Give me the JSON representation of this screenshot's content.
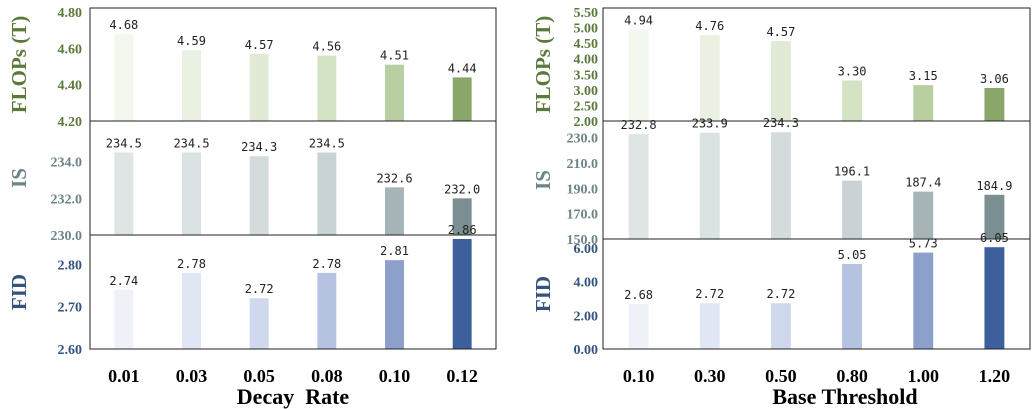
{
  "chart_data": [
    {
      "type": "bar",
      "xlabel": "Decay  Rate",
      "categories": [
        "0.01",
        "0.03",
        "0.05",
        "0.08",
        "0.10",
        "0.12"
      ],
      "panels": [
        {
          "id": "flops",
          "ylabel": "FLOPs (T)",
          "values": [
            4.68,
            4.59,
            4.57,
            4.56,
            4.51,
            4.44
          ],
          "labels": [
            "4.68",
            "4.59",
            "4.57",
            "4.56",
            "4.51",
            "4.44"
          ],
          "ylim": [
            4.2,
            4.8
          ],
          "ticks": [
            "4.20",
            "4.40",
            "4.60",
            "4.80"
          ],
          "tick_values": [
            4.2,
            4.4,
            4.6,
            4.8
          ],
          "label_color": "#5b7a3a",
          "colors": [
            "#f3f8ee",
            "#eaf1e2",
            "#e0ead5",
            "#d3e3c4",
            "#b9cfa2",
            "#8aa66b"
          ]
        },
        {
          "id": "is",
          "ylabel": "IS",
          "values": [
            234.5,
            234.5,
            234.3,
            234.5,
            232.6,
            232.0
          ],
          "labels": [
            "234.5",
            "234.5",
            "234.3",
            "234.5",
            "232.6",
            "232.0"
          ],
          "ylim": [
            230.0,
            236.0
          ],
          "ticks": [
            "230.0",
            "232.0",
            "234.0"
          ],
          "tick_values": [
            230.0,
            232.0,
            234.0
          ],
          "label_color": "#6b8488",
          "colors": [
            "#dfe4e5",
            "#dbe2e3",
            "#d3dbdc",
            "#c9d3d5",
            "#a6b4b7",
            "#7b8f93"
          ]
        },
        {
          "id": "fid",
          "ylabel": "FID",
          "values": [
            2.74,
            2.78,
            2.72,
            2.78,
            2.81,
            2.86
          ],
          "labels": [
            "2.74",
            "2.78",
            "2.72",
            "2.78",
            "2.81",
            "2.86"
          ],
          "ylim": [
            2.6,
            2.86
          ],
          "ticks": [
            "2.60",
            "2.70",
            "2.80"
          ],
          "tick_values": [
            2.6,
            2.7,
            2.8
          ],
          "label_color": "#34547e",
          "colors": [
            "#eef1f8",
            "#e0e6f3",
            "#cfd8ec",
            "#b6c3e0",
            "#8d9fcb",
            "#3d5f9b"
          ]
        }
      ]
    },
    {
      "type": "bar",
      "xlabel": "Base Threshold",
      "categories": [
        "0.10",
        "0.30",
        "0.50",
        "0.80",
        "1.00",
        "1.20"
      ],
      "panels": [
        {
          "id": "flops",
          "ylabel": "FLOPs (T)",
          "values": [
            4.94,
            4.76,
            4.57,
            3.3,
            3.15,
            3.06
          ],
          "labels": [
            "4.94",
            "4.76",
            "4.57",
            "3.30",
            "3.15",
            "3.06"
          ],
          "ylim": [
            2.0,
            5.5
          ],
          "ticks": [
            "2.00",
            "2.50",
            "3.00",
            "3.50",
            "4.00",
            "4.50",
            "5.00",
            "5.50"
          ],
          "tick_values": [
            2.0,
            2.5,
            3.0,
            3.5,
            4.0,
            4.5,
            5.0,
            5.5
          ],
          "label_color": "#5b7a3a",
          "colors": [
            "#f3f8ee",
            "#eaf1e2",
            "#e0ead5",
            "#d3e3c4",
            "#b9cfa2",
            "#8aa66b"
          ]
        },
        {
          "id": "is",
          "ylabel": "IS",
          "values": [
            232.8,
            233.9,
            234.3,
            196.1,
            187.4,
            184.9
          ],
          "labels": [
            "232.8",
            "233.9",
            "234.3",
            "196.1",
            "187.4",
            "184.9"
          ],
          "ylim": [
            150.0,
            240.0
          ],
          "ticks": [
            "150.0",
            "170.0",
            "190.0",
            "210.0",
            "230.0"
          ],
          "tick_values": [
            150.0,
            170.0,
            190.0,
            210.0,
            230.0
          ],
          "label_color": "#6b8488",
          "colors": [
            "#dfe4e5",
            "#dbe2e3",
            "#d3dbdc",
            "#c9d3d5",
            "#a6b4b7",
            "#7b8f93"
          ]
        },
        {
          "id": "fid",
          "ylabel": "FID",
          "values": [
            2.68,
            2.72,
            2.72,
            5.05,
            5.73,
            6.05
          ],
          "labels": [
            "2.68",
            "2.72",
            "2.72",
            "5.05",
            "5.73",
            "6.05"
          ],
          "ylim": [
            0.0,
            6.3
          ],
          "ticks": [
            "0.00",
            "2.00",
            "4.00",
            "6.00"
          ],
          "tick_values": [
            0.0,
            2.0,
            4.0,
            6.0
          ],
          "label_color": "#34547e",
          "colors": [
            "#eef1f8",
            "#e0e6f3",
            "#cfd8ec",
            "#b6c3e0",
            "#8d9fcb",
            "#3d5f9b"
          ]
        }
      ]
    }
  ]
}
